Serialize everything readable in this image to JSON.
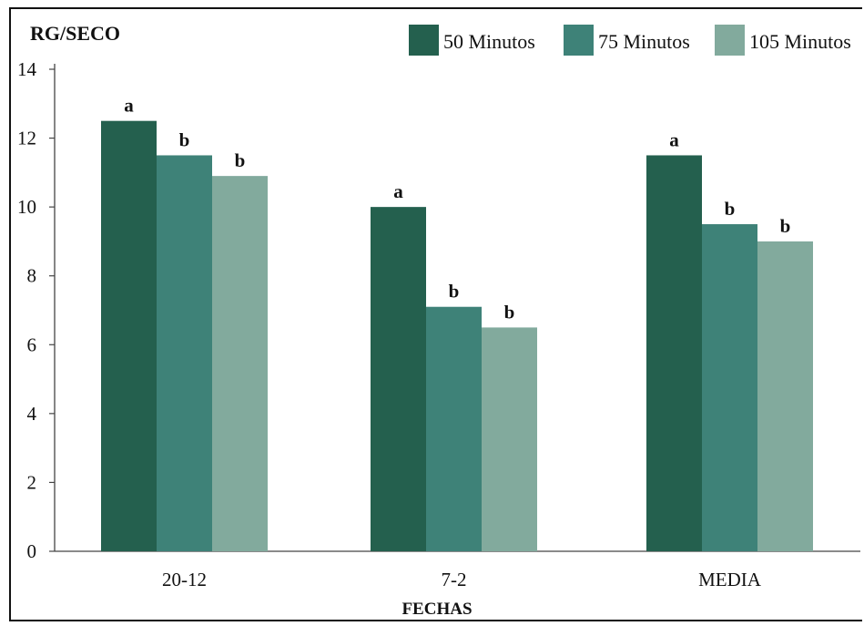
{
  "chart_data": {
    "type": "bar",
    "title": "",
    "ylabel": "RG/SECO",
    "xlabel": "FECHAS",
    "categories": [
      "20-12",
      "7-2",
      "MEDIA"
    ],
    "ylim": [
      0,
      14
    ],
    "yticks": [
      0,
      2,
      4,
      6,
      8,
      10,
      12,
      14
    ],
    "grid": false,
    "legend_position": "top-right",
    "series": [
      {
        "name": "50 Minutos",
        "color": "#24604e",
        "values": [
          12.5,
          10.0,
          11.5
        ],
        "labels": [
          "a",
          "a",
          "a"
        ]
      },
      {
        "name": "75 Minutos",
        "color": "#3e8278",
        "values": [
          11.5,
          7.1,
          9.5
        ],
        "labels": [
          "b",
          "b",
          "b"
        ]
      },
      {
        "name": "105 Minutos",
        "color": "#82aa9d",
        "values": [
          10.9,
          6.5,
          9.0
        ],
        "labels": [
          "b",
          "b",
          "b"
        ]
      }
    ]
  }
}
